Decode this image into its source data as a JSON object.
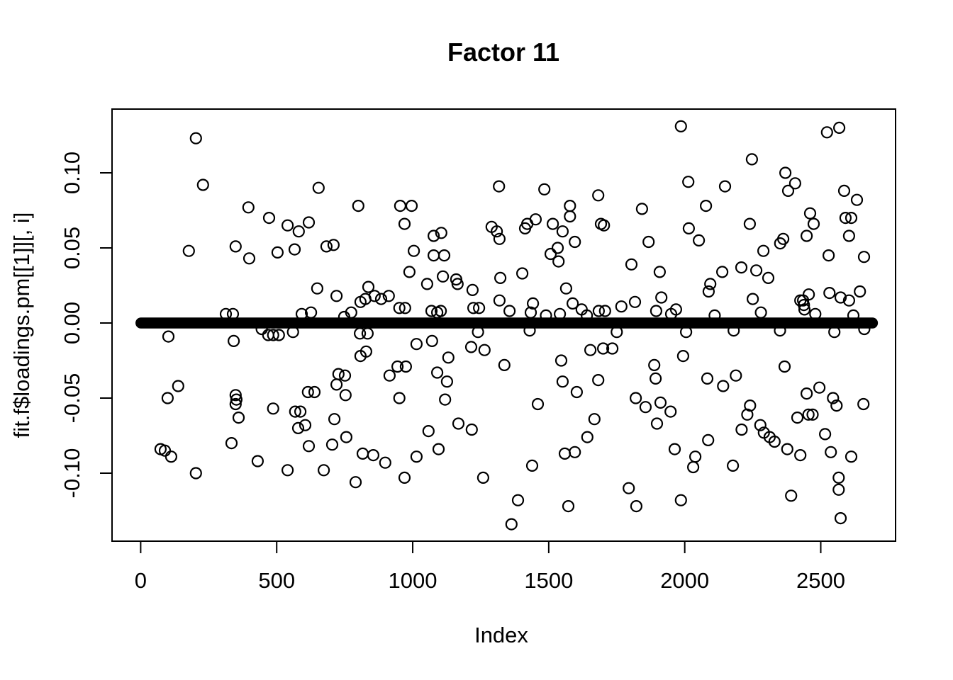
{
  "figure": {
    "title": "Factor 11",
    "xlabel": "Index",
    "ylabel": "fit.f$loadings.pm[[1]][, i]",
    "background_color": "#ffffff",
    "foreground_color": "#000000"
  },
  "chart_data": {
    "type": "scatter",
    "title": "Factor 11",
    "xlabel": "Index",
    "ylabel": "fit.f$loadings.pm[[1]][, i]",
    "marker": "open-circle",
    "grid": false,
    "legend": null,
    "xlim": [
      -105,
      2775
    ],
    "ylim": [
      -0.1455,
      0.1425
    ],
    "x_ticks": [
      0,
      500,
      1000,
      1500,
      2000,
      2500
    ],
    "x_tick_labels": [
      "0",
      "500",
      "1000",
      "1500",
      "2000",
      "2500"
    ],
    "y_ticks": [
      -0.1,
      -0.05,
      0.0,
      0.05,
      0.1
    ],
    "y_tick_labels": [
      "-0.10",
      "-0.05",
      "0.00",
      "0.05",
      "0.10"
    ],
    "zero_band": {
      "y": 0.0,
      "x_start": 1,
      "x_end": 2690,
      "approx_count": 2400,
      "note": "dense overlapping points with loading ~0 forming a solid black band"
    },
    "points": [
      [
        203,
        0.123
      ],
      [
        229,
        0.092
      ],
      [
        654,
        0.09
      ],
      [
        800,
        0.078
      ],
      [
        396,
        0.077
      ],
      [
        472,
        0.07
      ],
      [
        540,
        0.065
      ],
      [
        618,
        0.067
      ],
      [
        581,
        0.061
      ],
      [
        177,
        0.048
      ],
      [
        349,
        0.051
      ],
      [
        399,
        0.043
      ],
      [
        503,
        0.047
      ],
      [
        566,
        0.049
      ],
      [
        683,
        0.051
      ],
      [
        709,
        0.052
      ],
      [
        649,
        0.023
      ],
      [
        720,
        0.018
      ],
      [
        837,
        0.024
      ],
      [
        808,
        0.014
      ],
      [
        826,
        0.016
      ],
      [
        339,
        0.006
      ],
      [
        592,
        0.006
      ],
      [
        626,
        0.007
      ],
      [
        774,
        0.007
      ],
      [
        748,
        0.004
      ],
      [
        1317,
        0.091
      ],
      [
        1484,
        0.089
      ],
      [
        1682,
        0.085
      ],
      [
        954,
        0.078
      ],
      [
        996,
        0.078
      ],
      [
        1578,
        0.078
      ],
      [
        1578,
        0.071
      ],
      [
        970,
        0.066
      ],
      [
        1452,
        0.069
      ],
      [
        1421,
        0.066
      ],
      [
        1413,
        0.063
      ],
      [
        1515,
        0.066
      ],
      [
        1692,
        0.066
      ],
      [
        1703,
        0.065
      ],
      [
        1551,
        0.061
      ],
      [
        1077,
        0.058
      ],
      [
        1105,
        0.06
      ],
      [
        1290,
        0.064
      ],
      [
        1309,
        0.061
      ],
      [
        1319,
        0.056
      ],
      [
        1596,
        0.054
      ],
      [
        1533,
        0.05
      ],
      [
        1536,
        0.041
      ],
      [
        1507,
        0.046
      ],
      [
        1004,
        0.048
      ],
      [
        1077,
        0.045
      ],
      [
        1116,
        0.045
      ],
      [
        988,
        0.034
      ],
      [
        1053,
        0.026
      ],
      [
        1111,
        0.031
      ],
      [
        1160,
        0.029
      ],
      [
        1165,
        0.026
      ],
      [
        1220,
        0.022
      ],
      [
        1322,
        0.03
      ],
      [
        1403,
        0.033
      ],
      [
        1564,
        0.023
      ],
      [
        1588,
        0.013
      ],
      [
        1319,
        0.015
      ],
      [
        1356,
        0.008
      ],
      [
        1442,
        0.013
      ],
      [
        1434,
        0.007
      ],
      [
        912,
        0.018
      ],
      [
        884,
        0.016
      ],
      [
        860,
        0.018
      ],
      [
        951,
        0.01
      ],
      [
        972,
        0.01
      ],
      [
        1069,
        0.008
      ],
      [
        1090,
        0.007
      ],
      [
        1103,
        0.008
      ],
      [
        1223,
        0.01
      ],
      [
        1244,
        0.01
      ],
      [
        1621,
        0.009
      ],
      [
        1684,
        0.008
      ],
      [
        1707,
        0.008
      ],
      [
        1767,
        0.011
      ],
      [
        1541,
        0.006
      ],
      [
        1804,
        0.039
      ],
      [
        1986,
        0.131
      ],
      [
        2523,
        0.127
      ],
      [
        2568,
        0.13
      ],
      [
        2247,
        0.109
      ],
      [
        2370,
        0.1
      ],
      [
        2406,
        0.093
      ],
      [
        2380,
        0.088
      ],
      [
        2013,
        0.094
      ],
      [
        2148,
        0.091
      ],
      [
        2586,
        0.088
      ],
      [
        2633,
        0.082
      ],
      [
        2078,
        0.078
      ],
      [
        1843,
        0.076
      ],
      [
        2591,
        0.07
      ],
      [
        2612,
        0.07
      ],
      [
        2461,
        0.073
      ],
      [
        2474,
        0.066
      ],
      [
        2239,
        0.066
      ],
      [
        2015,
        0.063
      ],
      [
        1867,
        0.054
      ],
      [
        2052,
        0.055
      ],
      [
        2448,
        0.058
      ],
      [
        2604,
        0.058
      ],
      [
        2351,
        0.053
      ],
      [
        2362,
        0.056
      ],
      [
        2289,
        0.048
      ],
      [
        2529,
        0.045
      ],
      [
        2659,
        0.044
      ],
      [
        1908,
        0.034
      ],
      [
        2138,
        0.034
      ],
      [
        2208,
        0.037
      ],
      [
        2263,
        0.035
      ],
      [
        2307,
        0.03
      ],
      [
        2094,
        0.026
      ],
      [
        2088,
        0.021
      ],
      [
        2250,
        0.016
      ],
      [
        2456,
        0.019
      ],
      [
        2425,
        0.015
      ],
      [
        2435,
        0.015
      ],
      [
        2532,
        0.02
      ],
      [
        2573,
        0.017
      ],
      [
        2604,
        0.015
      ],
      [
        2644,
        0.021
      ],
      [
        2438,
        0.012
      ],
      [
        2440,
        0.009
      ],
      [
        1914,
        0.017
      ],
      [
        1895,
        0.008
      ],
      [
        1968,
        0.009
      ],
      [
        1817,
        0.014
      ],
      [
        102,
        -0.009
      ],
      [
        342,
        -0.012
      ],
      [
        469,
        -0.008
      ],
      [
        487,
        -0.008
      ],
      [
        508,
        -0.008
      ],
      [
        560,
        -0.006
      ],
      [
        806,
        -0.007
      ],
      [
        834,
        -0.007
      ],
      [
        808,
        -0.022
      ],
      [
        829,
        -0.019
      ],
      [
        99,
        -0.05
      ],
      [
        138,
        -0.042
      ],
      [
        727,
        -0.034
      ],
      [
        751,
        -0.035
      ],
      [
        720,
        -0.041
      ],
      [
        615,
        -0.046
      ],
      [
        639,
        -0.046
      ],
      [
        753,
        -0.048
      ],
      [
        349,
        -0.048
      ],
      [
        352,
        -0.051
      ],
      [
        349,
        -0.054
      ],
      [
        487,
        -0.057
      ],
      [
        360,
        -0.063
      ],
      [
        568,
        -0.059
      ],
      [
        587,
        -0.059
      ],
      [
        579,
        -0.07
      ],
      [
        605,
        -0.068
      ],
      [
        712,
        -0.064
      ],
      [
        756,
        -0.076
      ],
      [
        704,
        -0.081
      ],
      [
        618,
        -0.082
      ],
      [
        334,
        -0.08
      ],
      [
        73,
        -0.084
      ],
      [
        89,
        -0.085
      ],
      [
        112,
        -0.089
      ],
      [
        430,
        -0.092
      ],
      [
        203,
        -0.1
      ],
      [
        540,
        -0.098
      ],
      [
        673,
        -0.098
      ],
      [
        790,
        -0.106
      ],
      [
        816,
        -0.087
      ],
      [
        1014,
        -0.014
      ],
      [
        1071,
        -0.012
      ],
      [
        1215,
        -0.016
      ],
      [
        1264,
        -0.018
      ],
      [
        1653,
        -0.018
      ],
      [
        1700,
        -0.017
      ],
      [
        1734,
        -0.017
      ],
      [
        1131,
        -0.023
      ],
      [
        1337,
        -0.028
      ],
      [
        1546,
        -0.025
      ],
      [
        944,
        -0.029
      ],
      [
        975,
        -0.029
      ],
      [
        915,
        -0.035
      ],
      [
        1090,
        -0.033
      ],
      [
        1126,
        -0.039
      ],
      [
        1551,
        -0.039
      ],
      [
        1603,
        -0.046
      ],
      [
        1682,
        -0.038
      ],
      [
        951,
        -0.05
      ],
      [
        1119,
        -0.051
      ],
      [
        1460,
        -0.054
      ],
      [
        1820,
        -0.05
      ],
      [
        1168,
        -0.067
      ],
      [
        1217,
        -0.071
      ],
      [
        1058,
        -0.072
      ],
      [
        1095,
        -0.084
      ],
      [
        1014,
        -0.089
      ],
      [
        855,
        -0.088
      ],
      [
        899,
        -0.093
      ],
      [
        970,
        -0.103
      ],
      [
        1259,
        -0.103
      ],
      [
        1439,
        -0.095
      ],
      [
        1559,
        -0.087
      ],
      [
        1596,
        -0.086
      ],
      [
        1642,
        -0.076
      ],
      [
        1668,
        -0.064
      ],
      [
        1387,
        -0.118
      ],
      [
        1572,
        -0.122
      ],
      [
        1363,
        -0.134
      ],
      [
        1794,
        -0.11
      ],
      [
        1994,
        -0.022
      ],
      [
        1888,
        -0.028
      ],
      [
        1893,
        -0.037
      ],
      [
        2367,
        -0.029
      ],
      [
        2083,
        -0.037
      ],
      [
        2188,
        -0.035
      ],
      [
        2141,
        -0.042
      ],
      [
        2495,
        -0.043
      ],
      [
        2448,
        -0.047
      ],
      [
        2545,
        -0.05
      ],
      [
        2558,
        -0.055
      ],
      [
        2657,
        -0.054
      ],
      [
        1856,
        -0.056
      ],
      [
        1911,
        -0.053
      ],
      [
        1948,
        -0.059
      ],
      [
        1898,
        -0.067
      ],
      [
        2240,
        -0.055
      ],
      [
        2230,
        -0.061
      ],
      [
        2209,
        -0.071
      ],
      [
        2414,
        -0.063
      ],
      [
        2455,
        -0.061
      ],
      [
        2470,
        -0.061
      ],
      [
        2278,
        -0.068
      ],
      [
        2291,
        -0.073
      ],
      [
        2312,
        -0.076
      ],
      [
        2330,
        -0.079
      ],
      [
        2516,
        -0.074
      ],
      [
        2377,
        -0.084
      ],
      [
        2425,
        -0.088
      ],
      [
        2086,
        -0.078
      ],
      [
        1963,
        -0.084
      ],
      [
        2039,
        -0.089
      ],
      [
        2031,
        -0.096
      ],
      [
        2177,
        -0.095
      ],
      [
        2537,
        -0.086
      ],
      [
        2612,
        -0.089
      ],
      [
        2566,
        -0.103
      ],
      [
        2566,
        -0.111
      ],
      [
        2391,
        -0.115
      ],
      [
        1986,
        -0.118
      ],
      [
        1822,
        -0.122
      ],
      [
        2573,
        -0.13
      ],
      [
        313,
        0.006
      ],
      [
        445,
        -0.004
      ],
      [
        1490,
        0.005
      ],
      [
        1950,
        0.006
      ],
      [
        2005,
        -0.006
      ],
      [
        2110,
        0.005
      ],
      [
        2180,
        -0.005
      ],
      [
        2280,
        0.007
      ],
      [
        2620,
        0.005
      ],
      [
        2660,
        -0.004
      ],
      [
        1240,
        -0.006
      ],
      [
        1430,
        -0.005
      ],
      [
        1640,
        0.005
      ],
      [
        1750,
        -0.006
      ],
      [
        2480,
        0.006
      ],
      [
        2350,
        -0.005
      ],
      [
        2550,
        -0.006
      ]
    ]
  }
}
